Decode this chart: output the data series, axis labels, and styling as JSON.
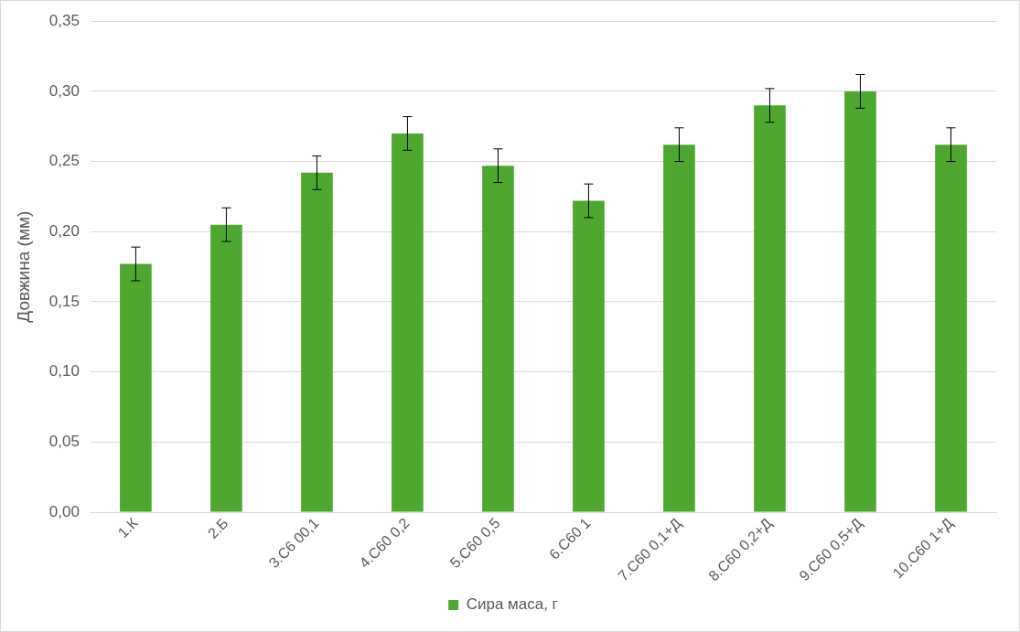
{
  "chart_data": {
    "type": "bar",
    "ylabel": "Довжина (мм)",
    "categories": [
      "1.К",
      "2.Б",
      "3.С6 00,1",
      "4.С60 0,2",
      "5.С60 0,5",
      "6.С60 1",
      "7.С60 0,1+Д",
      "8.С60 0,2+Д",
      "9.С60 0,5+Д",
      "10.С60 1+Д"
    ],
    "series": [
      {
        "name": "Сира маса, г",
        "color": "#4ea72e",
        "values": [
          0.177,
          0.205,
          0.242,
          0.27,
          0.247,
          0.222,
          0.262,
          0.29,
          0.3,
          0.262
        ],
        "errors": [
          0.012,
          0.012,
          0.012,
          0.012,
          0.012,
          0.012,
          0.012,
          0.012,
          0.012,
          0.012
        ]
      }
    ],
    "ylim": [
      0,
      0.35
    ],
    "yticks": [
      {
        "value": 0,
        "label": "0,00"
      },
      {
        "value": 0.05,
        "label": "0,05"
      },
      {
        "value": 0.1,
        "label": "0,10"
      },
      {
        "value": 0.15,
        "label": "0,15"
      },
      {
        "value": 0.2,
        "label": "0,20"
      },
      {
        "value": 0.25,
        "label": "0,25"
      },
      {
        "value": 0.3,
        "label": "0,30"
      },
      {
        "value": 0.35,
        "label": "0,35"
      }
    ],
    "grid": "y",
    "legend": "bottom"
  }
}
